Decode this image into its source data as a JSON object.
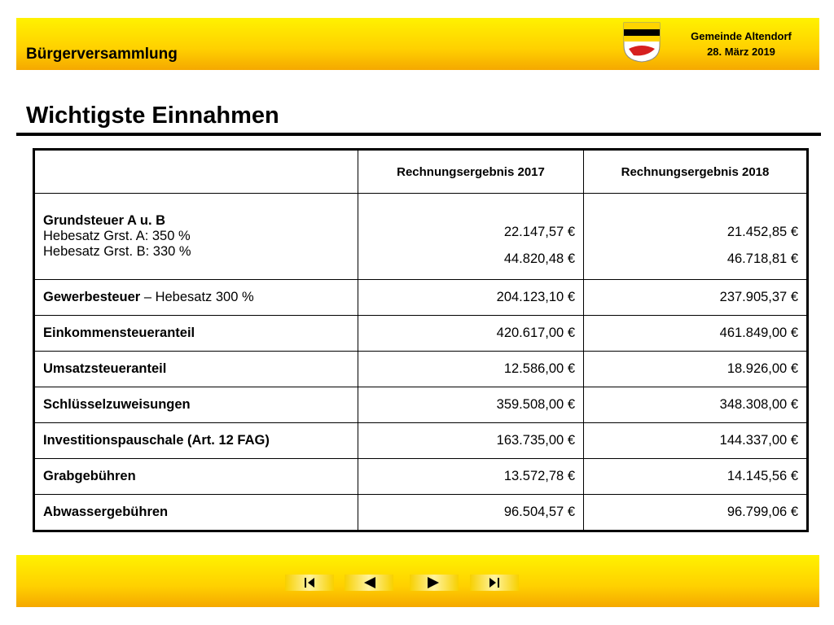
{
  "header": {
    "title": "Bürgerversammlung",
    "org": "Gemeinde Altendorf",
    "date": "28. März 2019"
  },
  "title": "Wichtigste Einnahmen",
  "table": {
    "columns": [
      "Rechnungsergebnis 2017",
      "Rechnungsergebnis 2018"
    ],
    "rows": [
      {
        "label": "Grundsteuer A u. B",
        "details": [
          "Hebesatz Grst. A:  350 %",
          "Hebesatz Grst. B:  330 %"
        ],
        "v2017": [
          "22.147,57 €",
          "44.820,48 €"
        ],
        "v2018": [
          "21.452,85 €",
          "46.718,81 €"
        ]
      },
      {
        "label": "Gewerbesteuer",
        "note": " – Hebesatz 300 %",
        "v2017": [
          "204.123,10 €"
        ],
        "v2018": [
          "237.905,37 €"
        ]
      },
      {
        "label": "Einkommensteueranteil",
        "v2017": [
          "420.617,00 €"
        ],
        "v2018": [
          "461.849,00 €"
        ]
      },
      {
        "label": "Umsatzsteueranteil",
        "v2017": [
          "12.586,00 €"
        ],
        "v2018": [
          "18.926,00 €"
        ]
      },
      {
        "label": "Schlüsselzuweisungen",
        "v2017": [
          "359.508,00 €"
        ],
        "v2018": [
          "348.308,00 €"
        ]
      },
      {
        "label": "Investitionspauschale (Art. 12 FAG)",
        "v2017": [
          "163.735,00 €"
        ],
        "v2018": [
          "144.337,00 €"
        ]
      },
      {
        "label": "Grabgebühren",
        "v2017": [
          "13.572,78 €"
        ],
        "v2018": [
          "14.145,56 €"
        ]
      },
      {
        "label": "Abwassergebühren",
        "v2017": [
          "96.504,57 €"
        ],
        "v2018": [
          "96.799,06 €"
        ]
      }
    ]
  }
}
